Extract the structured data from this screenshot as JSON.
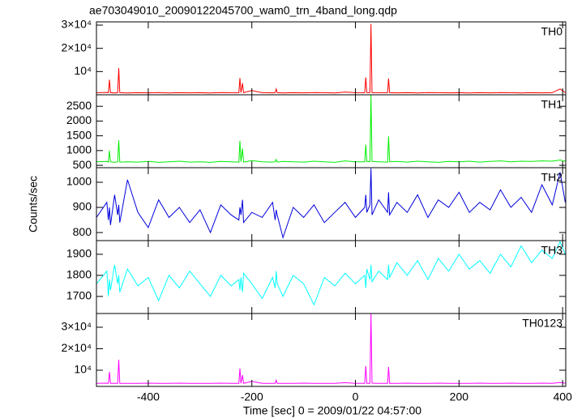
{
  "chart_data": {
    "type": "line",
    "title": "ae703049010_20090122045700_wam0_trn_4band_long.qdp",
    "xlabel": "Time [sec] 0 = 2009/01/22 04:57:00",
    "ylabel": "Counts/sec",
    "xlim": [
      -500,
      406
    ],
    "xticks": [
      -400,
      -200,
      0,
      200,
      400
    ],
    "x": [
      -500,
      -480,
      -477,
      -475,
      -473,
      -465,
      -459,
      -457,
      -455,
      -440,
      -420,
      -400,
      -380,
      -360,
      -340,
      -320,
      -300,
      -280,
      -260,
      -240,
      -225,
      -223,
      -221,
      -218,
      -216,
      -200,
      -180,
      -160,
      -155,
      -153,
      -151,
      -140,
      -120,
      -100,
      -80,
      -60,
      -40,
      -20,
      0,
      18,
      20,
      22,
      28,
      30,
      32,
      45,
      62,
      64,
      66,
      80,
      100,
      120,
      140,
      160,
      180,
      200,
      220,
      240,
      260,
      280,
      300,
      320,
      340,
      360,
      380,
      395,
      405
    ],
    "series": [
      {
        "name": "TH0",
        "color": "#ff0000",
        "ylim": [
          0,
          31400
        ],
        "yticks": [
          {
            "value": 10000,
            "label": "10⁴"
          },
          {
            "value": 20000,
            "label": "2×10⁴"
          },
          {
            "value": 30000,
            "label": "3×10⁴"
          }
        ],
        "values": [
          900,
          1000,
          900,
          6500,
          900,
          800,
          900,
          11500,
          900,
          800,
          900,
          850,
          950,
          800,
          900,
          850,
          900,
          800,
          950,
          900,
          900,
          7200,
          900,
          5000,
          900,
          1800,
          900,
          850,
          900,
          2500,
          900,
          800,
          900,
          850,
          950,
          900,
          800,
          1200,
          900,
          900,
          7500,
          900,
          900,
          30500,
          900,
          900,
          900,
          7000,
          900,
          850,
          900,
          800,
          950,
          900,
          850,
          900,
          800,
          900,
          850,
          950,
          900,
          800,
          900,
          850,
          900,
          2500,
          900
        ]
      },
      {
        "name": "TH1",
        "color": "#00ee00",
        "ylim": [
          420,
          2890
        ],
        "yticks": [
          500,
          1000,
          1500,
          2000,
          2500
        ],
        "values": [
          620,
          630,
          610,
          1000,
          620,
          600,
          620,
          1350,
          610,
          620,
          610,
          630,
          600,
          620,
          640,
          610,
          620,
          600,
          630,
          620,
          610,
          1330,
          620,
          1070,
          610,
          660,
          620,
          610,
          620,
          700,
          610,
          630,
          620,
          610,
          640,
          620,
          600,
          650,
          620,
          620,
          1200,
          630,
          620,
          2880,
          630,
          620,
          610,
          1480,
          620,
          630,
          610,
          640,
          620,
          600,
          630,
          620,
          640,
          610,
          630,
          650,
          620,
          640,
          630,
          650,
          640,
          680,
          640
        ]
      },
      {
        "name": "TH2",
        "color": "#0000dd",
        "ylim": [
          768,
          1058
        ],
        "yticks": [
          800,
          900,
          1000
        ],
        "values": [
          860,
          920,
          850,
          900,
          830,
          950,
          870,
          910,
          840,
          1010,
          880,
          820,
          930,
          860,
          900,
          840,
          890,
          800,
          910,
          870,
          850,
          900,
          870,
          930,
          840,
          880,
          860,
          920,
          850,
          890,
          870,
          780,
          900,
          860,
          910,
          840,
          880,
          920,
          860,
          900,
          950,
          880,
          910,
          1055,
          870,
          930,
          880,
          960,
          870,
          920,
          880,
          950,
          860,
          930,
          900,
          960,
          880,
          920,
          890,
          970,
          900,
          940,
          880,
          990,
          910,
          1040,
          920
        ]
      },
      {
        "name": "TH3",
        "color": "#00ffff",
        "ylim": [
          1619,
          1965
        ],
        "yticks": [
          1700,
          1800,
          1900
        ],
        "values": [
          1760,
          1820,
          1700,
          1780,
          1730,
          1850,
          1760,
          1800,
          1720,
          1830,
          1750,
          1790,
          1680,
          1800,
          1740,
          1820,
          1760,
          1700,
          1800,
          1750,
          1780,
          1730,
          1790,
          1720,
          1810,
          1760,
          1690,
          1790,
          1740,
          1820,
          1760,
          1700,
          1800,
          1760,
          1660,
          1790,
          1750,
          1810,
          1760,
          1800,
          1740,
          1830,
          1780,
          1850,
          1770,
          1820,
          1780,
          1850,
          1790,
          1860,
          1800,
          1870,
          1780,
          1880,
          1820,
          1900,
          1830,
          1870,
          1810,
          1900,
          1840,
          1940,
          1860,
          1920,
          1880,
          1960,
          1900
        ]
      },
      {
        "name": "TH0123",
        "color": "#ff00ff",
        "ylim": [
          2450,
          36400
        ],
        "yticks": [
          {
            "value": 10000,
            "label": "10⁴"
          },
          {
            "value": 20000,
            "label": "2×10⁴"
          },
          {
            "value": 30000,
            "label": "3×10⁴"
          }
        ],
        "values": [
          3900,
          3950,
          3900,
          9200,
          3900,
          3850,
          3900,
          14900,
          3900,
          3850,
          3900,
          3950,
          3850,
          3900,
          3950,
          3900,
          3850,
          3900,
          3950,
          3900,
          3900,
          10800,
          3900,
          7700,
          3900,
          4800,
          3900,
          3850,
          3900,
          5300,
          3900,
          3850,
          3900,
          3950,
          3900,
          3850,
          3900,
          4200,
          3900,
          3900,
          11900,
          3900,
          3900,
          36400,
          3950,
          3900,
          3900,
          11500,
          3900,
          3900,
          3950,
          3850,
          3900,
          3950,
          3900,
          3850,
          3900,
          3950,
          3900,
          3900,
          3950,
          3900,
          3850,
          3950,
          3900,
          4300,
          3950
        ]
      }
    ]
  }
}
